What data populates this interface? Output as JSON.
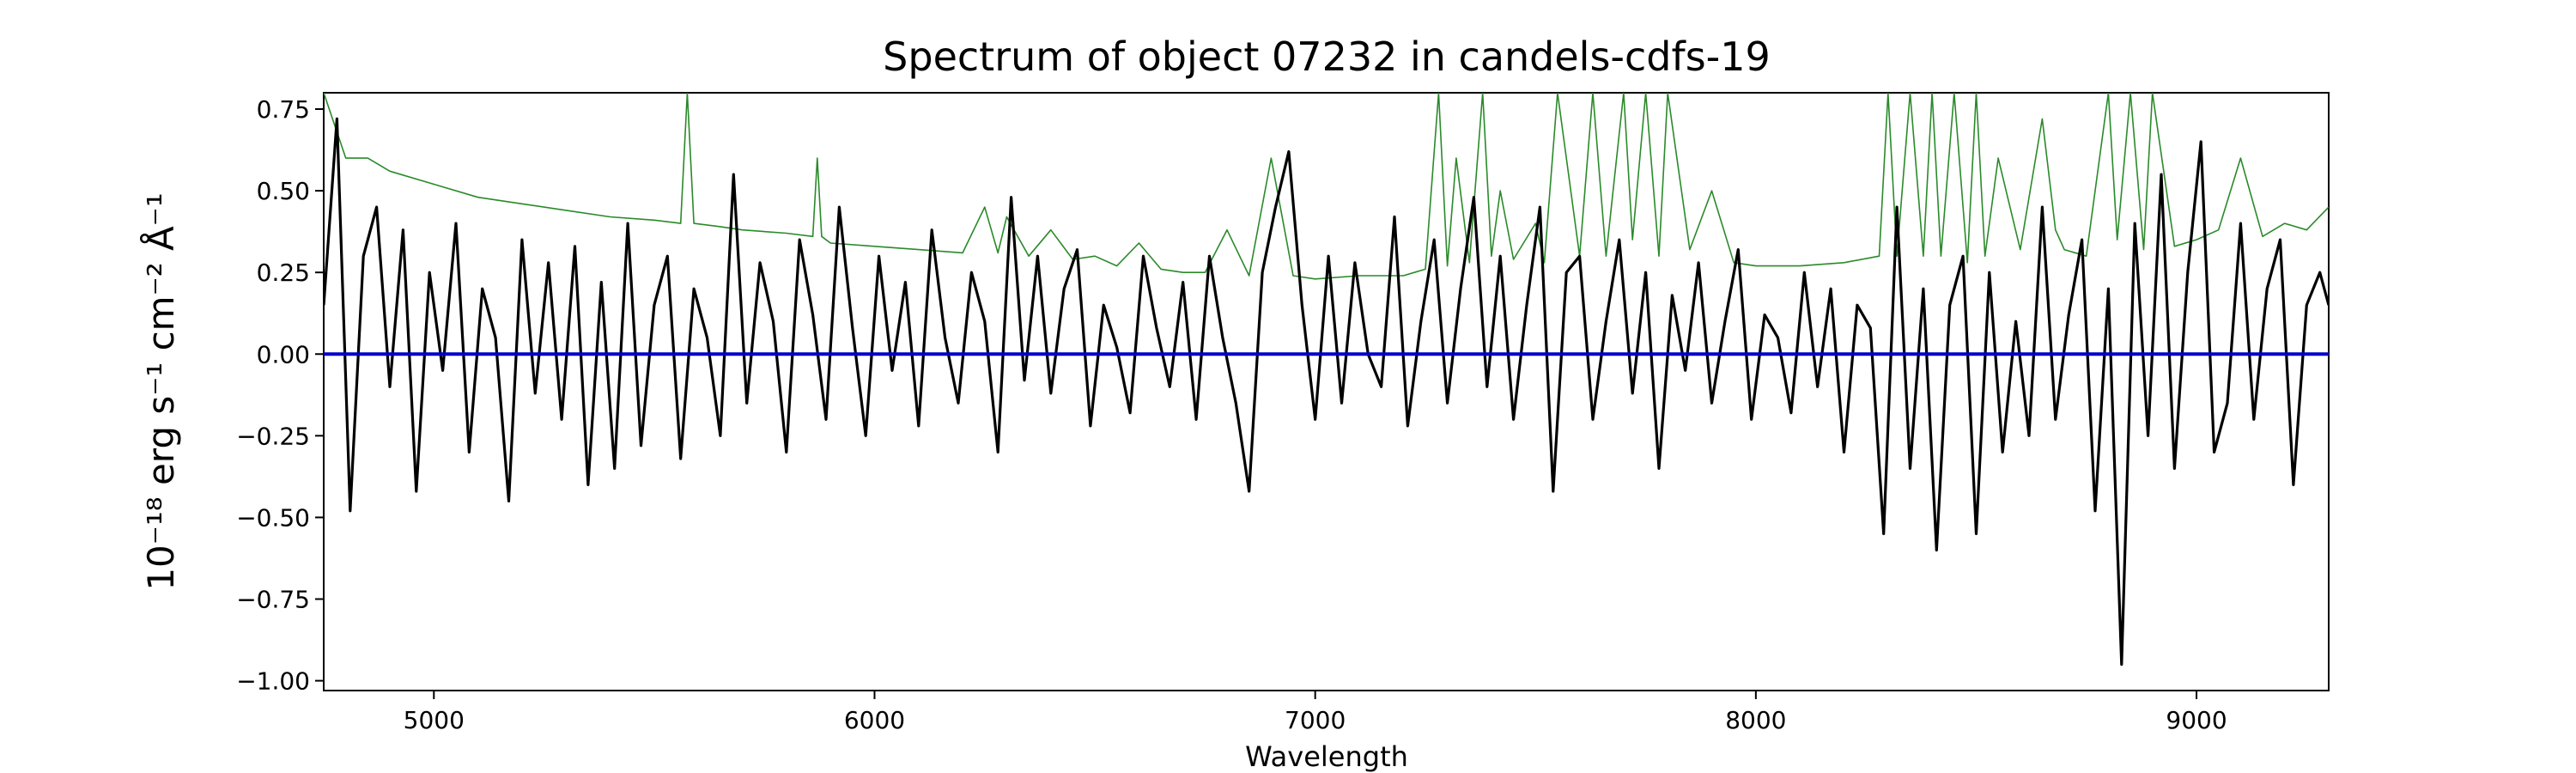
{
  "chart_data": {
    "type": "line",
    "title": "Spectrum of object 07232 in candels-cdfs-19",
    "xlabel": "Wavelength",
    "ylabel": "10⁻¹⁸ erg s⁻¹ cm⁻² Å⁻¹",
    "xlim": [
      4750,
      9300
    ],
    "ylim": [
      -1.03,
      0.8
    ],
    "x_ticks": [
      5000,
      6000,
      7000,
      8000,
      9000
    ],
    "x_tick_labels": [
      "5000",
      "6000",
      "7000",
      "8000",
      "9000"
    ],
    "y_ticks": [
      -1.0,
      -0.75,
      -0.5,
      -0.25,
      0.0,
      0.25,
      0.5,
      0.75
    ],
    "y_tick_labels": [
      "−1.00",
      "−0.75",
      "−0.50",
      "−0.25",
      "0.00",
      "0.25",
      "0.50",
      "0.75"
    ],
    "grid": false,
    "series": [
      {
        "color": "#000000",
        "x": [
          4750,
          4780,
          4810,
          4840,
          4870,
          4900,
          4930,
          4960,
          4990,
          5020,
          5050,
          5080,
          5110,
          5140,
          5170,
          5200,
          5230,
          5260,
          5290,
          5320,
          5350,
          5380,
          5410,
          5440,
          5470,
          5500,
          5530,
          5560,
          5590,
          5620,
          5650,
          5680,
          5710,
          5740,
          5770,
          5800,
          5830,
          5860,
          5890,
          5920,
          5950,
          5980,
          6010,
          6040,
          6070,
          6100,
          6130,
          6160,
          6190,
          6220,
          6250,
          6280,
          6310,
          6340,
          6370,
          6400,
          6430,
          6460,
          6490,
          6520,
          6550,
          6580,
          6610,
          6640,
          6670,
          6700,
          6730,
          6760,
          6790,
          6820,
          6850,
          6880,
          6910,
          6940,
          6970,
          7000,
          7030,
          7060,
          7090,
          7120,
          7150,
          7180,
          7210,
          7240,
          7270,
          7300,
          7330,
          7360,
          7390,
          7420,
          7450,
          7480,
          7510,
          7540,
          7570,
          7600,
          7630,
          7660,
          7690,
          7720,
          7750,
          7780,
          7810,
          7840,
          7870,
          7900,
          7930,
          7960,
          7990,
          8020,
          8050,
          8080,
          8110,
          8140,
          8170,
          8200,
          8230,
          8260,
          8290,
          8320,
          8350,
          8380,
          8410,
          8440,
          8470,
          8500,
          8530,
          8560,
          8590,
          8620,
          8650,
          8680,
          8710,
          8740,
          8770,
          8800,
          8830,
          8860,
          8890,
          8920,
          8950,
          8980,
          9010,
          9040,
          9070,
          9100,
          9130,
          9160,
          9190,
          9220,
          9250,
          9280,
          9300
        ],
        "y": [
          0.15,
          0.72,
          -0.48,
          0.3,
          0.45,
          -0.1,
          0.38,
          -0.42,
          0.25,
          -0.05,
          0.4,
          -0.3,
          0.2,
          0.05,
          -0.45,
          0.35,
          -0.12,
          0.28,
          -0.2,
          0.33,
          -0.4,
          0.22,
          -0.35,
          0.4,
          -0.28,
          0.15,
          0.3,
          -0.32,
          0.2,
          0.05,
          -0.25,
          0.55,
          -0.15,
          0.28,
          0.1,
          -0.3,
          0.35,
          0.12,
          -0.2,
          0.45,
          0.08,
          -0.25,
          0.3,
          -0.05,
          0.22,
          -0.22,
          0.38,
          0.05,
          -0.15,
          0.25,
          0.1,
          -0.3,
          0.48,
          -0.08,
          0.3,
          -0.12,
          0.2,
          0.32,
          -0.22,
          0.15,
          0.02,
          -0.18,
          0.3,
          0.08,
          -0.1,
          0.22,
          -0.2,
          0.3,
          0.05,
          -0.15,
          -0.42,
          0.25,
          0.45,
          0.62,
          0.15,
          -0.2,
          0.3,
          -0.15,
          0.28,
          0.0,
          -0.1,
          0.42,
          -0.22,
          0.1,
          0.35,
          -0.15,
          0.2,
          0.48,
          -0.1,
          0.3,
          -0.2,
          0.15,
          0.45,
          -0.42,
          0.25,
          0.3,
          -0.2,
          0.1,
          0.35,
          -0.12,
          0.25,
          -0.35,
          0.18,
          -0.05,
          0.28,
          -0.15,
          0.1,
          0.32,
          -0.2,
          0.12,
          0.05,
          -0.18,
          0.25,
          -0.1,
          0.2,
          -0.3,
          0.15,
          0.08,
          -0.55,
          0.45,
          -0.35,
          0.2,
          -0.6,
          0.15,
          0.3,
          -0.55,
          0.25,
          -0.3,
          0.1,
          -0.25,
          0.45,
          -0.2,
          0.12,
          0.35,
          -0.48,
          0.2,
          -0.95,
          0.4,
          -0.25,
          0.55,
          -0.35,
          0.25,
          0.65,
          -0.3,
          -0.15,
          0.4,
          -0.2,
          0.2,
          0.35,
          -0.4,
          0.15,
          0.25,
          0.15
        ]
      },
      {
        "color": "#2a8a2a",
        "x": [
          4750,
          4800,
          4850,
          4900,
          5000,
          5100,
          5200,
          5300,
          5400,
          5500,
          5560,
          5575,
          5590,
          5650,
          5700,
          5800,
          5860,
          5870,
          5880,
          5900,
          6000,
          6100,
          6200,
          6250,
          6280,
          6300,
          6350,
          6400,
          6450,
          6500,
          6550,
          6600,
          6650,
          6700,
          6750,
          6800,
          6850,
          6900,
          6950,
          7000,
          7100,
          7200,
          7250,
          7280,
          7300,
          7320,
          7350,
          7380,
          7400,
          7420,
          7450,
          7500,
          7520,
          7550,
          7600,
          7630,
          7660,
          7700,
          7720,
          7750,
          7780,
          7800,
          7850,
          7900,
          7950,
          8000,
          8100,
          8200,
          8280,
          8300,
          8320,
          8350,
          8380,
          8400,
          8420,
          8450,
          8480,
          8500,
          8520,
          8550,
          8600,
          8650,
          8680,
          8700,
          8750,
          8800,
          8820,
          8850,
          8880,
          8900,
          8950,
          9000,
          9050,
          9100,
          9150,
          9200,
          9250,
          9300
        ],
        "y": [
          0.8,
          0.6,
          0.6,
          0.56,
          0.52,
          0.48,
          0.46,
          0.44,
          0.42,
          0.41,
          0.4,
          0.8,
          0.4,
          0.39,
          0.38,
          0.37,
          0.36,
          0.6,
          0.36,
          0.34,
          0.33,
          0.32,
          0.31,
          0.45,
          0.31,
          0.42,
          0.3,
          0.38,
          0.29,
          0.3,
          0.27,
          0.34,
          0.26,
          0.25,
          0.25,
          0.38,
          0.24,
          0.6,
          0.24,
          0.23,
          0.24,
          0.24,
          0.26,
          0.8,
          0.27,
          0.6,
          0.28,
          0.8,
          0.3,
          0.5,
          0.29,
          0.4,
          0.28,
          0.8,
          0.3,
          0.8,
          0.3,
          0.8,
          0.35,
          0.8,
          0.3,
          0.8,
          0.32,
          0.5,
          0.28,
          0.27,
          0.27,
          0.28,
          0.3,
          0.8,
          0.3,
          0.8,
          0.3,
          0.8,
          0.3,
          0.8,
          0.28,
          0.8,
          0.3,
          0.6,
          0.32,
          0.72,
          0.38,
          0.32,
          0.3,
          0.8,
          0.35,
          0.8,
          0.32,
          0.8,
          0.33,
          0.35,
          0.38,
          0.6,
          0.36,
          0.4,
          0.38,
          0.45
        ]
      },
      {
        "color": "#0000cc",
        "x": [
          4750,
          9300
        ],
        "y": [
          0.0,
          0.0
        ]
      }
    ]
  }
}
